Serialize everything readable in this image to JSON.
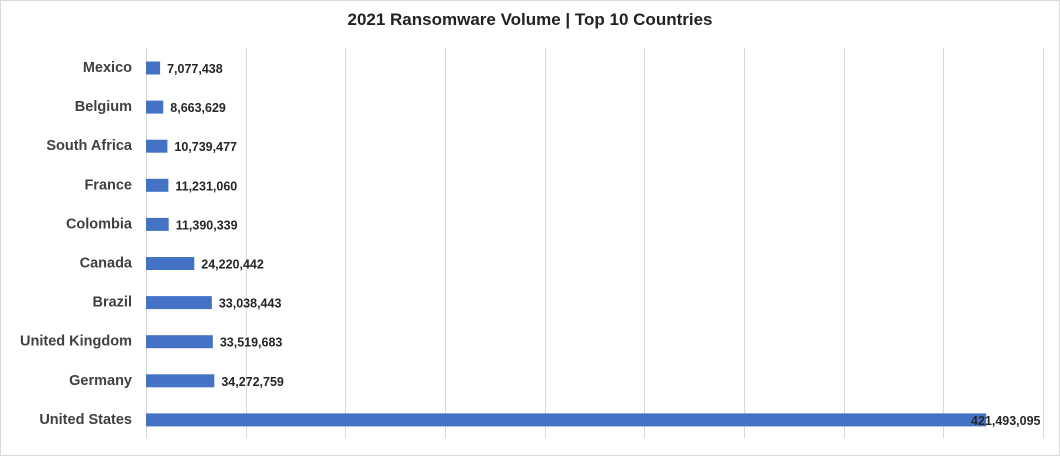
{
  "chart_data": {
    "type": "bar",
    "orientation": "horizontal",
    "title": "2021 Ransomware Volume | Top 10 Countries",
    "categories": [
      "Mexico",
      "Belgium",
      "South Africa",
      "France",
      "Colombia",
      "Canada",
      "Brazil",
      "United Kingdom",
      "Germany",
      "United States"
    ],
    "values": [
      7077438,
      8663629,
      10739477,
      11231060,
      11390339,
      24220442,
      33038443,
      33519683,
      34272759,
      421493095
    ],
    "value_labels": [
      "7,077,438",
      "8,663,629",
      "10,739,477",
      "11,231,060",
      "11,390,339",
      "24,220,442",
      "33,038,443",
      "33,519,683",
      "34,272,759",
      "421,493,095"
    ],
    "xlim": [
      0,
      450000000
    ],
    "x_gridline_step": 50000000,
    "x_tick_labels_visible": false,
    "grid": true,
    "legend": "none",
    "bar_color": "#4472c4",
    "gridline_color": "#d9d9d9"
  }
}
